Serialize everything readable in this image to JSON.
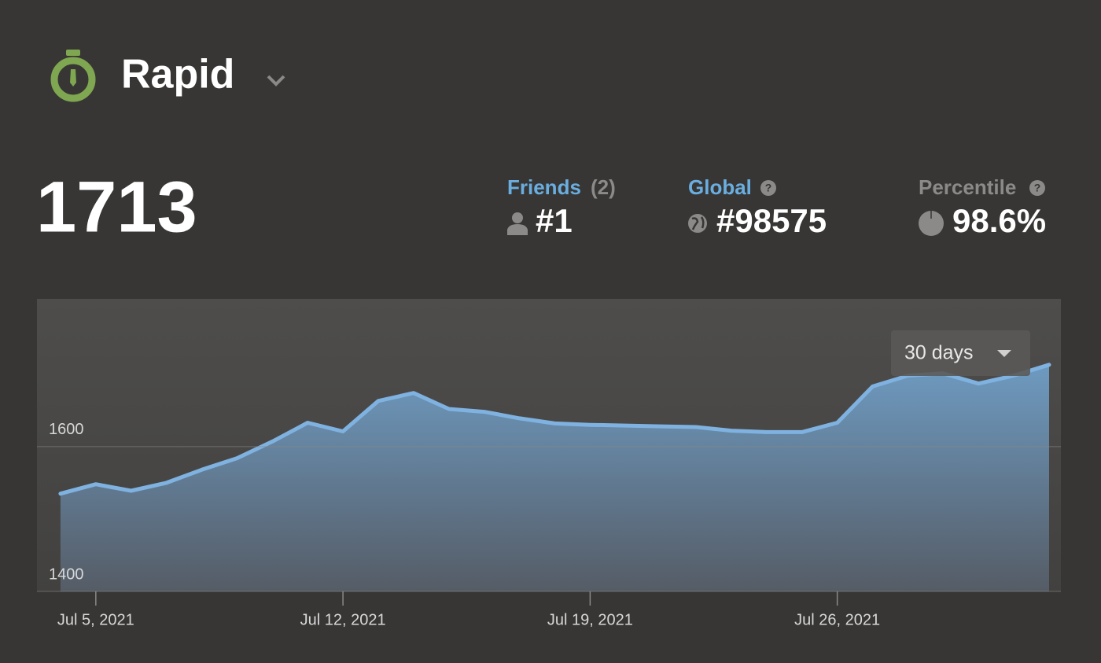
{
  "header": {
    "title": "Rapid"
  },
  "rating": "1713",
  "stats": {
    "friends": {
      "label": "Friends",
      "count": "(2)",
      "rank": "#1"
    },
    "global": {
      "label": "Global",
      "rank": "#98575"
    },
    "percentile": {
      "label": "Percentile",
      "value": "98.6%"
    }
  },
  "range_selector": "30 days",
  "chart_data": {
    "type": "area",
    "x": [
      "2021-07-04",
      "2021-07-05",
      "2021-07-06",
      "2021-07-07",
      "2021-07-08",
      "2021-07-09",
      "2021-07-10",
      "2021-07-11",
      "2021-07-12",
      "2021-07-13",
      "2021-07-14",
      "2021-07-15",
      "2021-07-16",
      "2021-07-17",
      "2021-07-18",
      "2021-07-19",
      "2021-07-20",
      "2021-07-21",
      "2021-07-22",
      "2021-07-23",
      "2021-07-24",
      "2021-07-25",
      "2021-07-26",
      "2021-07-27",
      "2021-07-28",
      "2021-07-29",
      "2021-07-30",
      "2021-07-31",
      "2021-08-01"
    ],
    "values": [
      1535,
      1548,
      1539,
      1550,
      1568,
      1584,
      1607,
      1633,
      1621,
      1663,
      1674,
      1652,
      1648,
      1639,
      1632,
      1630,
      1629,
      1628,
      1627,
      1622,
      1620,
      1620,
      1633,
      1683,
      1698,
      1701,
      1687,
      1698,
      1713
    ],
    "color": "#7fb2e0",
    "xlim": [
      "2021-07-03T08:00",
      "2021-08-01T08:00"
    ],
    "xticks": [
      {
        "value": "2021-07-05",
        "label": "Jul 5, 2021"
      },
      {
        "value": "2021-07-12",
        "label": "Jul 12, 2021"
      },
      {
        "value": "2021-07-19",
        "label": "Jul 19, 2021"
      },
      {
        "value": "2021-07-26",
        "label": "Jul 26, 2021"
      }
    ],
    "ylim": [
      1400,
      1804
    ],
    "yticks": [
      1400,
      1600
    ],
    "grid": true
  }
}
